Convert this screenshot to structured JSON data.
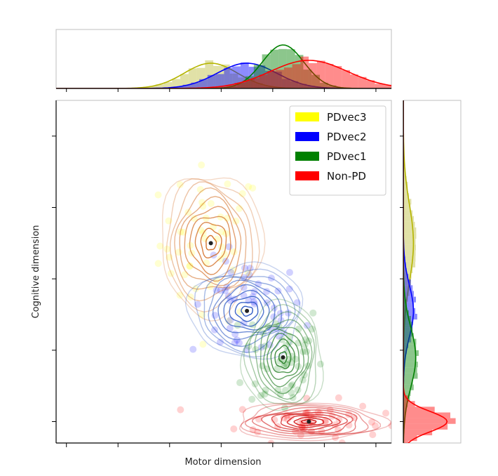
{
  "chart_data": {
    "type": "scatter",
    "title": "",
    "xlabel": "Motor dimension",
    "ylabel": "Cognitive dimension",
    "xlim": [
      0,
      6.5
    ],
    "ylim": [
      0,
      4.8
    ],
    "x_ticks": [
      0.2,
      1.2,
      2.2,
      3.2,
      4.2,
      5.2,
      6.2
    ],
    "y_ticks": [
      0.3,
      1.3,
      2.3,
      3.3,
      4.3
    ],
    "tick_labels_visible": false,
    "grid": false,
    "legend_position": "top-right",
    "legend": [
      {
        "label": "PDvec3",
        "color": "#ffff00"
      },
      {
        "label": "PDvec2",
        "color": "#0000ff"
      },
      {
        "label": "PDvec1",
        "color": "#008000"
      },
      {
        "label": "Non-PD",
        "color": "#ff0000"
      }
    ],
    "series": [
      {
        "name": "PDvec3",
        "color": "#ffff00",
        "contour_color": "#d2691e",
        "center": [
          3.0,
          2.8
        ],
        "spread": [
          0.45,
          0.45
        ]
      },
      {
        "name": "PDvec2",
        "color": "#0000ff",
        "contour_color": "#1f4fbf",
        "center": [
          3.7,
          1.85
        ],
        "spread": [
          0.5,
          0.3
        ]
      },
      {
        "name": "PDvec1",
        "color": "#008000",
        "contour_color": "#1f7a1f",
        "center": [
          4.4,
          1.2
        ],
        "spread": [
          0.35,
          0.35
        ]
      },
      {
        "name": "Non-PD",
        "color": "#ff0000",
        "contour_color": "#cc0000",
        "center": [
          4.9,
          0.3
        ],
        "spread": [
          0.65,
          0.12
        ]
      }
    ],
    "marginals": {
      "x_histogram": true,
      "y_histogram": true,
      "kde": true
    }
  }
}
